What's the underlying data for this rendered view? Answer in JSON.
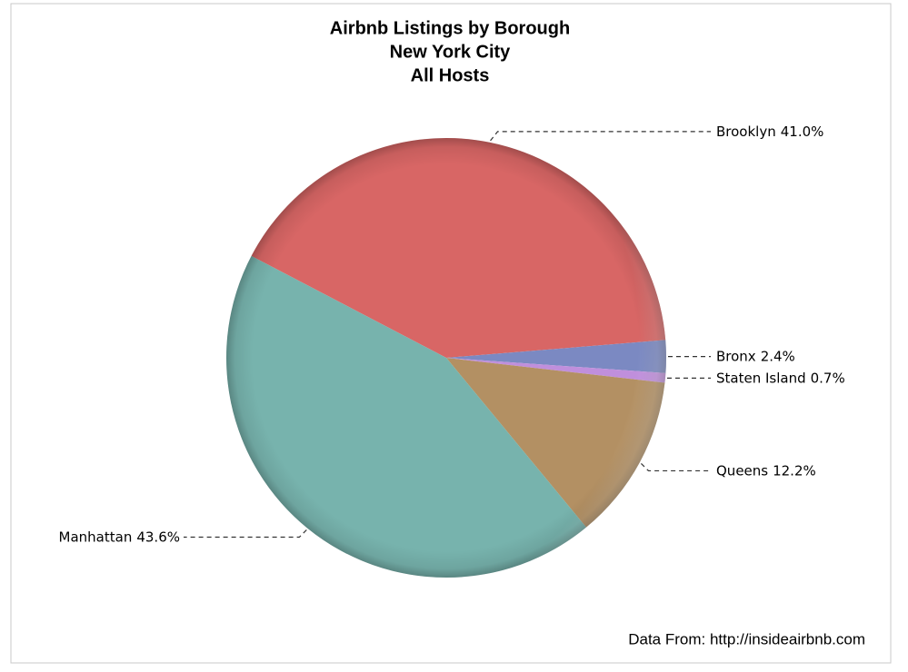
{
  "chart_data": {
    "type": "pie",
    "title": [
      "Airbnb Listings by Borough",
      "New York City",
      "All Hosts"
    ],
    "footnote": "Data From: http://insideairbnb.com",
    "categories": [
      "Brooklyn",
      "Bronx",
      "Staten Island",
      "Queens",
      "Manhattan"
    ],
    "values": [
      41.0,
      2.4,
      0.7,
      12.2,
      43.6
    ],
    "value_labels": [
      "41.0%",
      "2.4%",
      "0.7%",
      "12.2%",
      "43.6%"
    ],
    "colors": [
      "#d86665",
      "#7b89c2",
      "#c08fdc",
      "#b39063",
      "#77b3ad"
    ]
  }
}
